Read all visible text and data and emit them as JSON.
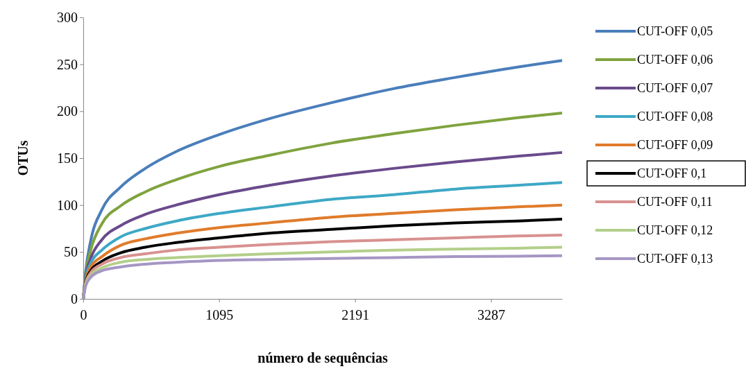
{
  "chart_data": {
    "type": "line",
    "xlabel": "número de sequências",
    "ylabel": "OTUs",
    "x": [
      0,
      20,
      60,
      150,
      300,
      500,
      750,
      1095,
      1500,
      2000,
      2500,
      3000,
      3500,
      3860
    ],
    "xlim": [
      0,
      3860
    ],
    "xticks": [
      0,
      1095,
      2191,
      3287
    ],
    "ylim": [
      0,
      300
    ],
    "yticks": [
      0,
      50,
      100,
      150,
      200,
      250,
      300
    ],
    "grid": false,
    "legend": "right",
    "marker": "none",
    "line_style": "solid",
    "series": [
      {
        "name": "CUT-OFF 0,05",
        "color": "#4a7ebb",
        "values": [
          0,
          30,
          62,
          95,
          119,
          139,
          157,
          175,
          192,
          209,
          224,
          236,
          247,
          254
        ]
      },
      {
        "name": "CUT-OFF 0,06",
        "color": "#7fa33e",
        "values": [
          0,
          27,
          52,
          80,
          99,
          114,
          127,
          141,
          153,
          166,
          176,
          185,
          193,
          198
        ]
      },
      {
        "name": "CUT-OFF 0,07",
        "color": "#6a4a8c",
        "values": [
          0,
          24,
          43,
          63,
          78,
          90,
          100,
          111,
          121,
          131,
          139,
          146,
          152,
          156
        ]
      },
      {
        "name": "CUT-OFF 0,08",
        "color": "#3ea8c6",
        "values": [
          0,
          22,
          38,
          52,
          66,
          75,
          83,
          91,
          98,
          106,
          111,
          117,
          121,
          124
        ]
      },
      {
        "name": "CUT-OFF 0,09",
        "color": "#e07b2a",
        "values": [
          0,
          20,
          34,
          45,
          57,
          64,
          70,
          76,
          81,
          87,
          91,
          95,
          98,
          100
        ]
      },
      {
        "name": "CUT-OFF 0,1",
        "color": "#000000",
        "values": [
          0,
          18,
          30,
          40,
          49,
          55,
          60,
          65,
          70,
          74,
          78,
          81,
          83,
          85
        ]
      },
      {
        "name": "CUT-OFF 0,11",
        "color": "#d8918f",
        "values": [
          0,
          17,
          28,
          37,
          44,
          48,
          52,
          55,
          58,
          61,
          63,
          65,
          67,
          68
        ]
      },
      {
        "name": "CUT-OFF 0,12",
        "color": "#b3cf8a",
        "values": [
          0,
          16,
          25,
          33,
          39,
          42,
          44,
          46,
          48,
          50,
          52,
          53,
          54,
          55
        ]
      },
      {
        "name": "CUT-OFF 0,13",
        "color": "#a596c4",
        "values": [
          0,
          14,
          23,
          30,
          34,
          37,
          39,
          41,
          42,
          43,
          44,
          45,
          45.5,
          46
        ]
      }
    ]
  }
}
